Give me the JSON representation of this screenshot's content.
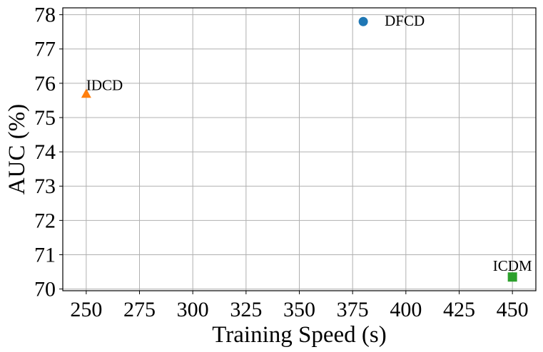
{
  "chart_data": {
    "type": "scatter",
    "title": "",
    "xlabel": "Training Speed (s)",
    "ylabel": "AUC (%)",
    "xlim": [
      239,
      461
    ],
    "ylim": [
      69.95,
      78.2
    ],
    "x_ticks": [
      250,
      275,
      300,
      325,
      350,
      375,
      400,
      425,
      450
    ],
    "y_ticks": [
      70,
      71,
      72,
      73,
      74,
      75,
      76,
      77,
      78
    ],
    "grid": true,
    "points": [
      {
        "label": "DFCD",
        "x": 380,
        "y": 77.8,
        "marker": "circle",
        "color": "#1f77b4"
      },
      {
        "label": "IDCD",
        "x": 250,
        "y": 75.7,
        "marker": "triangle",
        "color": "#ff7f0e"
      },
      {
        "label": "ICDM",
        "x": 450,
        "y": 70.35,
        "marker": "square",
        "color": "#2ca02c"
      }
    ]
  }
}
